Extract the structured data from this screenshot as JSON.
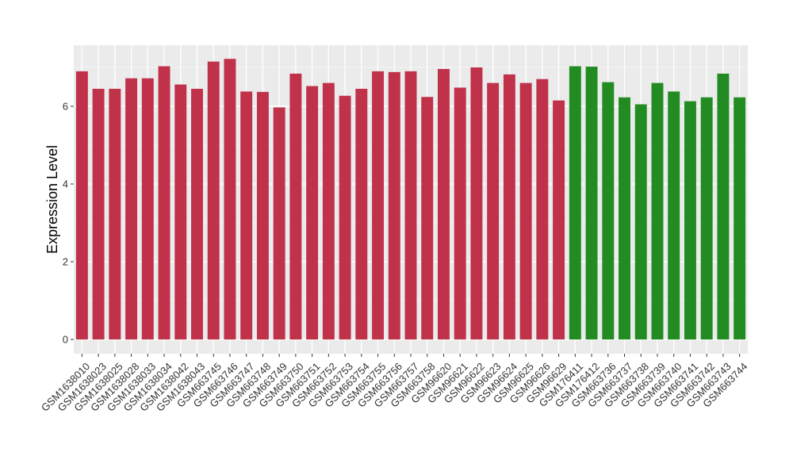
{
  "chart_data": {
    "type": "bar",
    "title": "",
    "xlabel": "",
    "ylabel": "Expression Level",
    "ylim": [
      0,
      7.6
    ],
    "y_ticks": [
      0,
      2,
      4,
      6
    ],
    "grid": true,
    "legend": "none",
    "colors": {
      "group1": "#c0314a",
      "group2": "#228b22",
      "panel": "#ebebeb",
      "grid": "#ffffff"
    },
    "categories": [
      "GSM1638010",
      "GSM1638023",
      "GSM1638025",
      "GSM1638028",
      "GSM1638033",
      "GSM1638034",
      "GSM1638042",
      "GSM1638043",
      "GSM663745",
      "GSM663746",
      "GSM663747",
      "GSM663748",
      "GSM663749",
      "GSM663750",
      "GSM663751",
      "GSM663752",
      "GSM663753",
      "GSM663754",
      "GSM663755",
      "GSM663756",
      "GSM663757",
      "GSM663758",
      "GSM96620",
      "GSM96621",
      "GSM96622",
      "GSM96623",
      "GSM96624",
      "GSM96625",
      "GSM96626",
      "GSM96629",
      "GSM176411",
      "GSM176412",
      "GSM663736",
      "GSM663737",
      "GSM663738",
      "GSM663739",
      "GSM663740",
      "GSM663741",
      "GSM663742",
      "GSM663743",
      "GSM663744"
    ],
    "values": [
      6.9,
      6.45,
      6.45,
      6.72,
      6.72,
      7.03,
      6.56,
      6.45,
      7.15,
      7.22,
      6.38,
      6.37,
      5.97,
      6.84,
      6.52,
      6.6,
      6.27,
      6.45,
      6.9,
      6.88,
      6.9,
      6.24,
      6.96,
      6.48,
      7.0,
      6.6,
      6.82,
      6.6,
      6.7,
      6.15,
      7.03,
      7.02,
      6.62,
      6.23,
      6.05,
      6.6,
      6.38,
      6.13,
      6.23,
      6.84,
      6.23
    ],
    "groups": [
      "group1",
      "group1",
      "group1",
      "group1",
      "group1",
      "group1",
      "group1",
      "group1",
      "group1",
      "group1",
      "group1",
      "group1",
      "group1",
      "group1",
      "group1",
      "group1",
      "group1",
      "group1",
      "group1",
      "group1",
      "group1",
      "group1",
      "group1",
      "group1",
      "group1",
      "group1",
      "group1",
      "group1",
      "group1",
      "group1",
      "group2",
      "group2",
      "group2",
      "group2",
      "group2",
      "group2",
      "group2",
      "group2",
      "group2",
      "group2",
      "group2"
    ]
  }
}
